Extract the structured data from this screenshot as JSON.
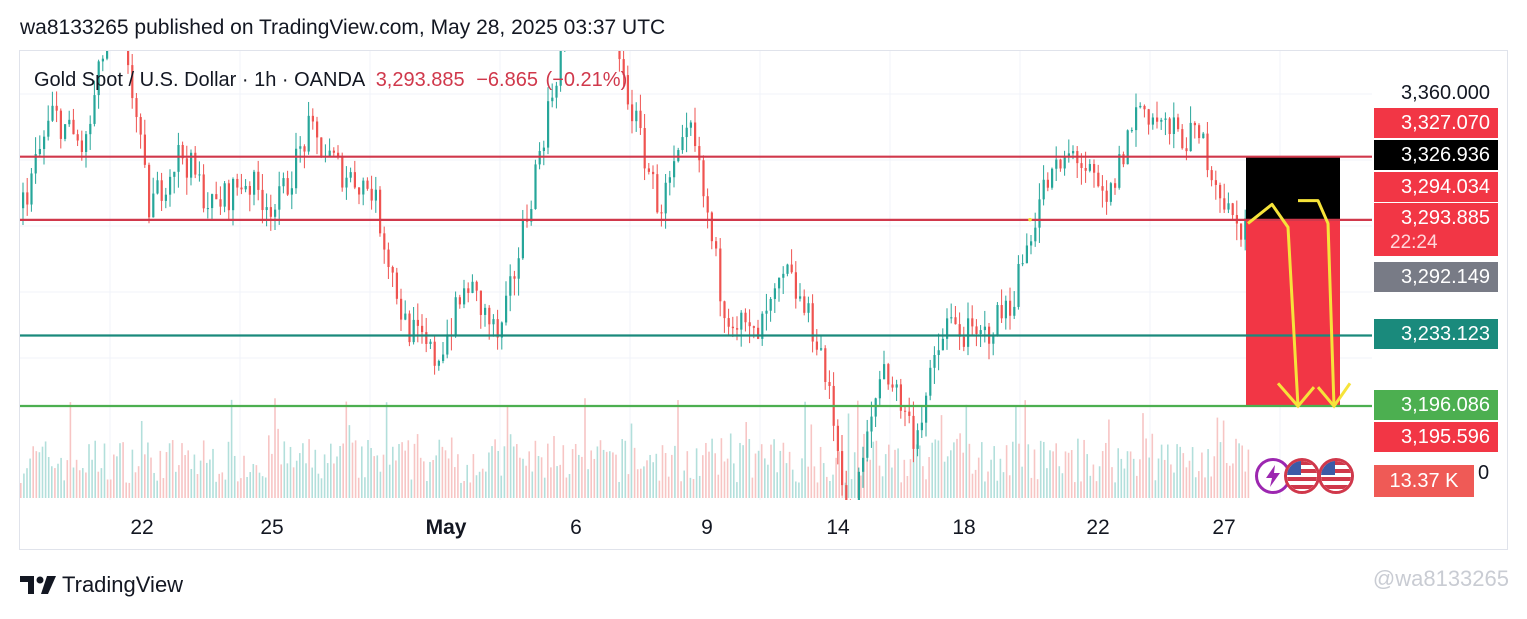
{
  "header": {
    "published": "wa8133265 published on TradingView.com, May 28, 2025 03:37 UTC"
  },
  "legend": {
    "symbol": "Gold Spot / U.S. Dollar · 1h · OANDA",
    "last": "3,293.885",
    "change": "−6.865",
    "change_pct": "(−0.21%)"
  },
  "colors": {
    "bull": "#26a69a",
    "bear": "#ef5350",
    "resistance": "#d0384b",
    "support_teal": "#1a8a7c",
    "support_green": "#4caf50",
    "projection": "#f6e33a",
    "sell_zone": "#f23645",
    "stop_zone": "#000000",
    "grey_label": "#787b86"
  },
  "price_axis": {
    "top_label": "3,360.000",
    "labels": [
      {
        "text": "3,327.070",
        "color": "#f23645"
      },
      {
        "text": "3,326.936",
        "color": "#000000"
      },
      {
        "text": "3,294.034",
        "color": "#f23645"
      },
      {
        "text": "3,293.885",
        "color": "#f23645"
      },
      {
        "text": "3,292.149",
        "color": "#787b86"
      },
      {
        "text": "3,233.123",
        "color": "#1a8a7c"
      },
      {
        "text": "3,196.086",
        "color": "#4caf50"
      },
      {
        "text": "3,195.596",
        "color": "#f23645"
      }
    ],
    "countdown": "22:24",
    "volume_label": "13.37 K",
    "volume_zero": "0"
  },
  "x_axis": {
    "ticks": [
      {
        "label": "22",
        "bold": false
      },
      {
        "label": "25",
        "bold": false
      },
      {
        "label": "May",
        "bold": true
      },
      {
        "label": "6",
        "bold": false
      },
      {
        "label": "9",
        "bold": false
      },
      {
        "label": "14",
        "bold": false
      },
      {
        "label": "18",
        "bold": false
      },
      {
        "label": "22",
        "bold": false
      },
      {
        "label": "27",
        "bold": false
      }
    ]
  },
  "chart_data": {
    "type": "candlestick",
    "instrument": "Gold Spot / U.S. Dollar",
    "timeframe": "1h",
    "source": "OANDA",
    "ylim": [
      3120,
      3360
    ],
    "close_path": [
      {
        "x": "Apr 20",
        "y": 3300
      },
      {
        "x": "Apr 21",
        "y": 3350
      },
      {
        "x": "Apr 22",
        "y": 3330
      },
      {
        "x": "Apr 22",
        "y": 3420
      },
      {
        "x": "Apr 23",
        "y": 3300
      },
      {
        "x": "Apr 24",
        "y": 3330
      },
      {
        "x": "Apr 25",
        "y": 3300
      },
      {
        "x": "Apr 26",
        "y": 3315
      },
      {
        "x": "Apr 27",
        "y": 3300
      },
      {
        "x": "Apr 28",
        "y": 3340
      },
      {
        "x": "Apr 29",
        "y": 3320
      },
      {
        "x": "Apr 30",
        "y": 3310
      },
      {
        "x": "May 1",
        "y": 3240
      },
      {
        "x": "May 2",
        "y": 3220
      },
      {
        "x": "May 3",
        "y": 3260
      },
      {
        "x": "May 4",
        "y": 3230
      },
      {
        "x": "May 5",
        "y": 3310
      },
      {
        "x": "May 6",
        "y": 3390
      },
      {
        "x": "May 7",
        "y": 3420
      },
      {
        "x": "May 8",
        "y": 3360
      },
      {
        "x": "May 9",
        "y": 3300
      },
      {
        "x": "May 10",
        "y": 3340
      },
      {
        "x": "May 11",
        "y": 3250
      },
      {
        "x": "May 12",
        "y": 3230
      },
      {
        "x": "May 13",
        "y": 3265
      },
      {
        "x": "May 14",
        "y": 3230
      },
      {
        "x": "May 15",
        "y": 3135
      },
      {
        "x": "May 16",
        "y": 3220
      },
      {
        "x": "May 17",
        "y": 3180
      },
      {
        "x": "May 18",
        "y": 3240
      },
      {
        "x": "May 19",
        "y": 3230
      },
      {
        "x": "May 20",
        "y": 3250
      },
      {
        "x": "May 21",
        "y": 3310
      },
      {
        "x": "May 22",
        "y": 3330
      },
      {
        "x": "May 23",
        "y": 3300
      },
      {
        "x": "May 24",
        "y": 3355
      },
      {
        "x": "May 25",
        "y": 3340
      },
      {
        "x": "May 26",
        "y": 3335
      },
      {
        "x": "May 27",
        "y": 3290
      },
      {
        "x": "May 28",
        "y": 3294
      }
    ],
    "horizontal_levels": [
      {
        "price": 3327.07,
        "color": "#d0384b"
      },
      {
        "price": 3293.885,
        "color": "#d0384b"
      },
      {
        "price": 3233.123,
        "color": "#1a8a7c"
      },
      {
        "price": 3196.086,
        "color": "#4caf50"
      }
    ],
    "short_position": {
      "entry": 3294.034,
      "stop": 3326.936,
      "target": 3195.596
    },
    "projection_path": [
      3294,
      3302,
      3290,
      3304,
      3290,
      3196
    ]
  }
}
